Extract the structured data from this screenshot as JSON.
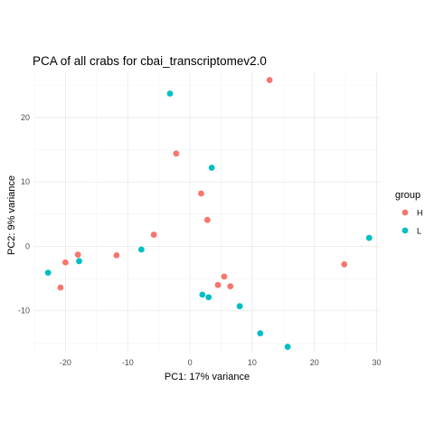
{
  "chart_data": {
    "type": "scatter",
    "title": "PCA of all crabs for cbai_transcriptomev2.0",
    "xlabel": "PC1: 17% variance",
    "ylabel": "PC2: 9% variance",
    "xlim": [
      -25,
      30.5
    ],
    "ylim": [
      -16.5,
      27
    ],
    "xticks": [
      -20,
      -10,
      0,
      10,
      20,
      30
    ],
    "yticks": [
      -10,
      0,
      10,
      20
    ],
    "grid": true,
    "legend": {
      "title": "group",
      "position": "right"
    },
    "series": [
      {
        "name": "H",
        "color": "#F8766D",
        "points": [
          [
            12.8,
            25.8
          ],
          [
            -2.2,
            14.4
          ],
          [
            1.8,
            8.2
          ],
          [
            2.8,
            4.1
          ],
          [
            -5.8,
            1.8
          ],
          [
            -11.8,
            -1.4
          ],
          [
            -18.0,
            -1.3
          ],
          [
            -20.0,
            -2.5
          ],
          [
            -20.8,
            -6.4
          ],
          [
            4.5,
            -6.0
          ],
          [
            5.5,
            -4.7
          ],
          [
            6.5,
            -6.2
          ],
          [
            24.8,
            -2.8
          ]
        ]
      },
      {
        "name": "L",
        "color": "#00BFC4",
        "points": [
          [
            -3.2,
            23.7
          ],
          [
            3.5,
            12.2
          ],
          [
            -7.8,
            -0.5
          ],
          [
            -17.8,
            -2.3
          ],
          [
            -22.8,
            -4.1
          ],
          [
            2.0,
            -7.5
          ],
          [
            3.0,
            -7.9
          ],
          [
            8.0,
            -9.3
          ],
          [
            11.3,
            -13.5
          ],
          [
            15.7,
            -15.6
          ],
          [
            28.8,
            1.3
          ]
        ]
      }
    ]
  }
}
